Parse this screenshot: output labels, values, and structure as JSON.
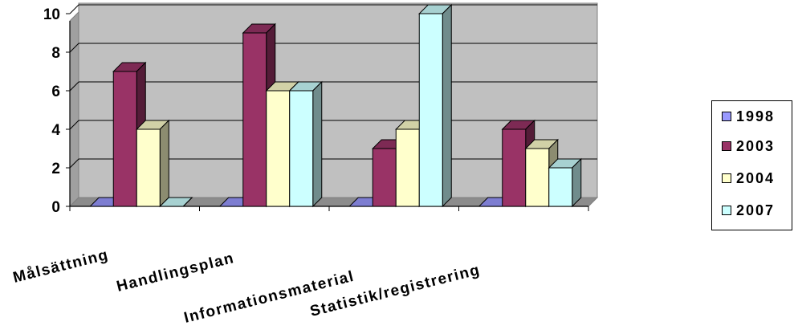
{
  "chart_data": {
    "type": "bar",
    "categories": [
      "Målsättning",
      "Handlingsplan",
      "Informationsmaterial",
      "Statistik/registrering"
    ],
    "series": [
      {
        "name": "1998",
        "values": [
          0,
          0,
          0,
          0
        ],
        "color": "#9999FF"
      },
      {
        "name": "2003",
        "values": [
          7,
          9,
          3,
          4
        ],
        "color": "#993366"
      },
      {
        "name": "2004",
        "values": [
          4,
          6,
          4,
          3
        ],
        "color": "#FFFFCC"
      },
      {
        "name": "2007",
        "values": [
          0,
          6,
          10,
          2
        ],
        "color": "#CCFFFF"
      }
    ],
    "ylim": [
      0,
      10
    ],
    "yticks": [
      "0",
      "2",
      "4",
      "6",
      "8",
      "10"
    ],
    "grid": true,
    "legend_position": "right",
    "plot_background": "#C0C0C0"
  }
}
